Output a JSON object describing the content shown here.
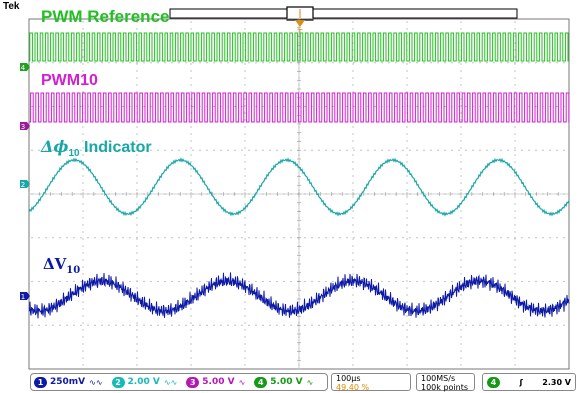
{
  "brand": "Tek",
  "labels": {
    "pwm_reference": "PWM Reference",
    "pwm10": "PWM10",
    "phi_indicator_prefix": "Δϕ",
    "phi_indicator_sub": "10",
    "phi_indicator_suffix": " Indicator",
    "dv_prefix": "ΔV",
    "dv_sub": "10"
  },
  "channels": [
    {
      "num": "1",
      "scale": "250mV",
      "bw": "∿∿",
      "color": "#0d1aa5"
    },
    {
      "num": "2",
      "scale": "2.00 V",
      "bw": "∿∿",
      "color": "#17b9b9"
    },
    {
      "num": "3",
      "scale": "5.00 V",
      "bw": "∿",
      "color": "#b517b5"
    },
    {
      "num": "4",
      "scale": "5.00 V",
      "bw": "∿",
      "color": "#159a15"
    }
  ],
  "timebase": {
    "scale": "100µs",
    "trigger_pos": "49.40 %"
  },
  "acquisition": {
    "rate": "100MS/s",
    "points": "100k points"
  },
  "trigger": {
    "channel": "4",
    "slope": "ʃ",
    "level": "2.30 V"
  },
  "colors": {
    "pwm_reference": "#22c022",
    "pwm10": "#d21fd2",
    "phi": "#17a7a7",
    "dv": "#0d1aa5",
    "trigger_marker": "#e08a00"
  }
}
